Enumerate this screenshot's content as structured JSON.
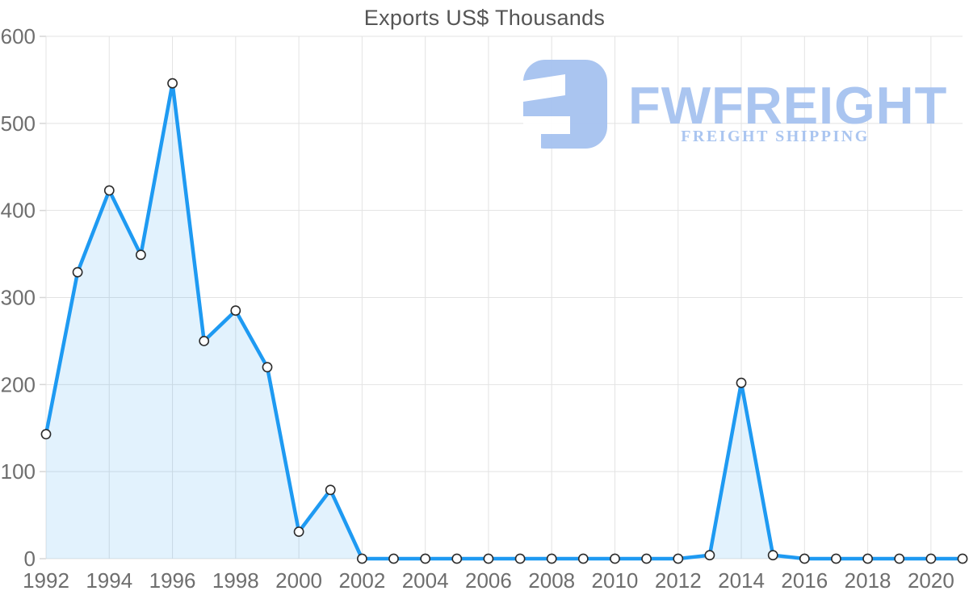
{
  "title": "Exports US$ Thousands",
  "watermark": {
    "brand": "FWFREIGHT",
    "tagline": "FREIGHT SHIPPING",
    "color": "#a7c3f0"
  },
  "colors": {
    "background": "#ffffff",
    "line": "#1e9af2",
    "area_fill": "rgba(30,154,242,0.13)",
    "grid": "#e3e3e3",
    "axis_tick": "#d6d6d6",
    "axis_text": "#6e6e6e",
    "title_text": "#555555",
    "marker_fill": "#ffffff",
    "marker_stroke": "#2b2b2b"
  },
  "chart_data": {
    "type": "area",
    "title": "Exports US$ Thousands",
    "xlabel": "",
    "ylabel": "",
    "x": [
      1992,
      1993,
      1994,
      1995,
      1996,
      1997,
      1998,
      1999,
      2000,
      2001,
      2002,
      2003,
      2004,
      2005,
      2006,
      2007,
      2008,
      2009,
      2010,
      2011,
      2012,
      2013,
      2014,
      2015,
      2016,
      2017,
      2018,
      2019,
      2020,
      2021
    ],
    "series": [
      {
        "name": "Exports US$ Thousands",
        "values": [
          143,
          329,
          423,
          349,
          546,
          250,
          285,
          220,
          31,
          79,
          0,
          0,
          0,
          0,
          0,
          0,
          0,
          0,
          0,
          0,
          0,
          4,
          202,
          4,
          0,
          0,
          0,
          0,
          0,
          0
        ]
      }
    ],
    "ylim": [
      0,
      600
    ],
    "ytick_interval": 100,
    "ytick_labels": [
      "0",
      "100",
      "200",
      "300",
      "400",
      "500",
      "600"
    ],
    "xtick_interval": 2,
    "xtick_labels": [
      "1992",
      "1994",
      "1996",
      "1998",
      "2000",
      "2002",
      "2004",
      "2006",
      "2008",
      "2010",
      "2012",
      "2014",
      "2016",
      "2018",
      "2020"
    ],
    "grid": true,
    "legend": false,
    "marker": "circle"
  }
}
